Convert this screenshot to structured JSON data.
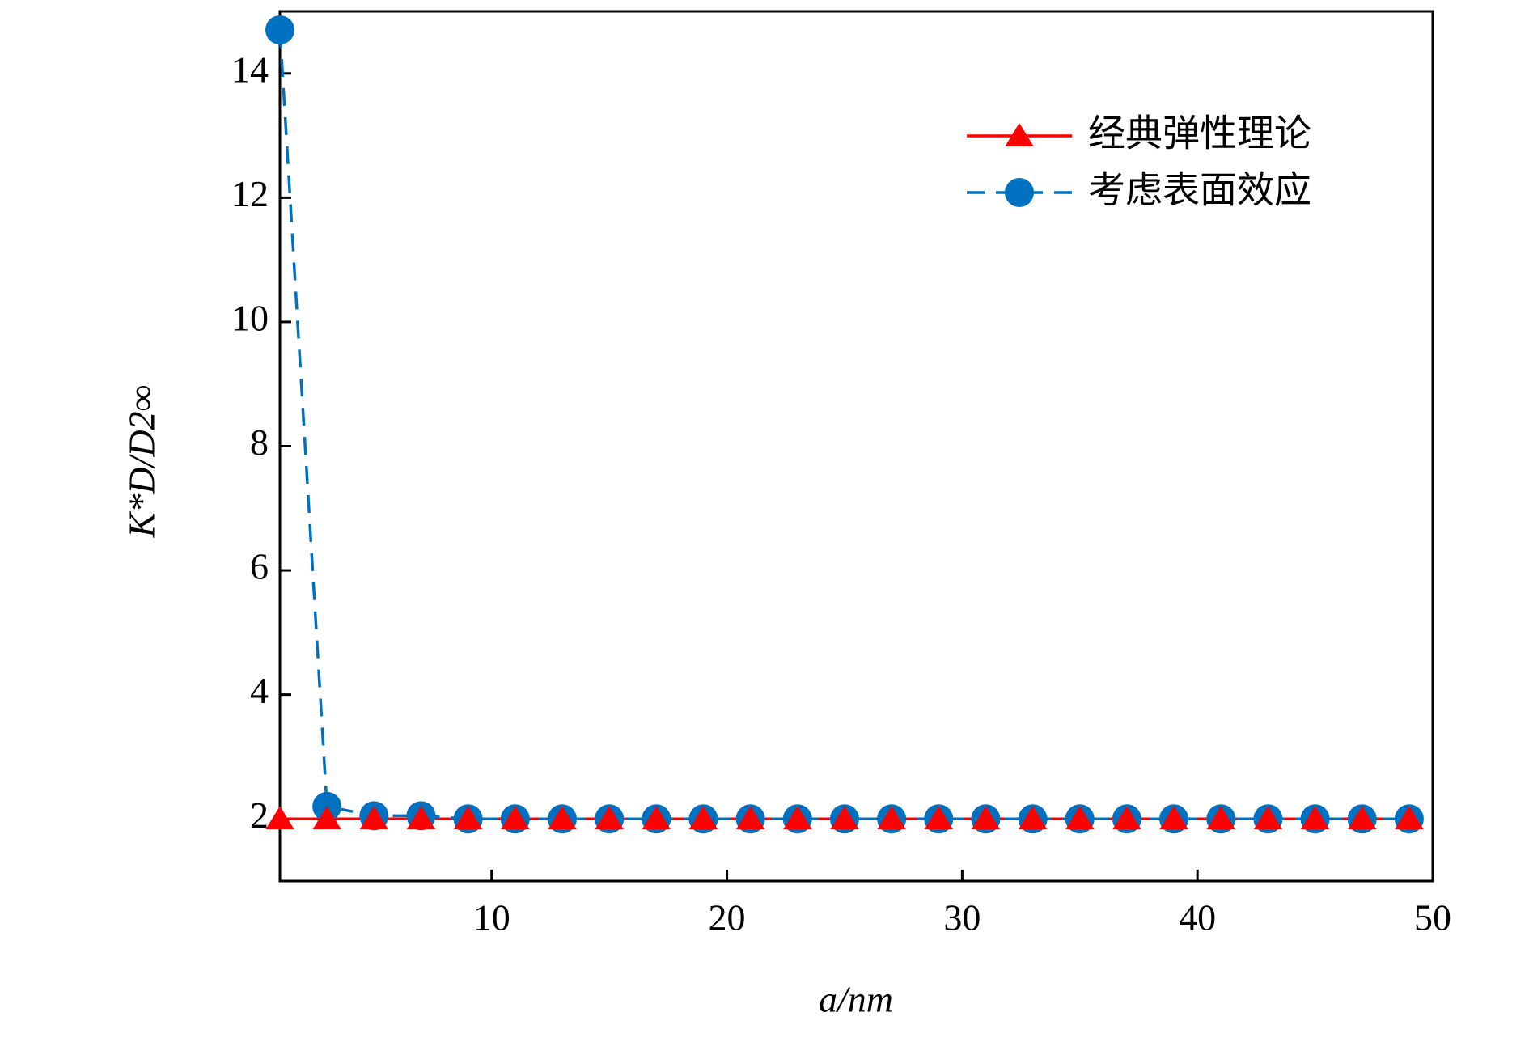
{
  "chart_data": {
    "type": "line",
    "xlabel": "a/nm",
    "ylabel": "K*D/D2∞",
    "x": [
      1,
      3,
      5,
      7,
      9,
      11,
      13,
      15,
      17,
      19,
      21,
      23,
      25,
      27,
      29,
      31,
      33,
      35,
      37,
      39,
      41,
      43,
      45,
      47,
      49
    ],
    "series": [
      {
        "name": "经典弹性理论",
        "color": "#ff0000",
        "marker": "triangle",
        "dash": "solid",
        "values": [
          2,
          2,
          2,
          2,
          2,
          2,
          2,
          2,
          2,
          2,
          2,
          2,
          2,
          2,
          2,
          2,
          2,
          2,
          2,
          2,
          2,
          2,
          2,
          2,
          2
        ]
      },
      {
        "name": "考虑表面效应",
        "color": "#0070c0",
        "marker": "circle",
        "dash": "dashed",
        "values": [
          14.7,
          2.2,
          2.05,
          2.05,
          2.0,
          2.0,
          2.0,
          2.0,
          2.0,
          2.0,
          2.0,
          2.0,
          2.0,
          2.0,
          2.0,
          2.0,
          2.0,
          2.0,
          2.0,
          2.0,
          2.0,
          2.0,
          2.0,
          2.0,
          2.0
        ]
      }
    ],
    "xlim": [
      1,
      50
    ],
    "xticks": [
      10,
      20,
      30,
      40,
      50
    ],
    "ylim": [
      1,
      15
    ],
    "yticks": [
      2,
      4,
      6,
      8,
      10,
      12,
      14
    ],
    "grid": false,
    "legend": "upper right"
  }
}
